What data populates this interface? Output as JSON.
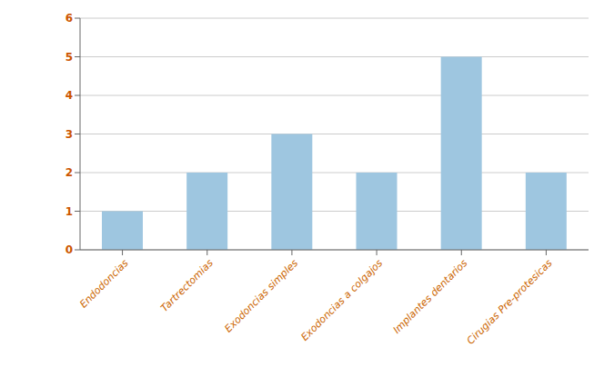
{
  "chart_data": {
    "type": "bar",
    "categories": [
      "Endodoncias",
      "Tartrectomias",
      "Exodoncias simples",
      "Exodoncias a colgajos",
      "Implantes dentarios",
      "Cirugias Pre-protesicas"
    ],
    "values": [
      1,
      2,
      3,
      2,
      5,
      2
    ],
    "color": "#9EC6E0",
    "ylim": [
      0,
      6
    ],
    "yticks": [
      0,
      1,
      2,
      3,
      4,
      5,
      6
    ],
    "grid": true
  }
}
